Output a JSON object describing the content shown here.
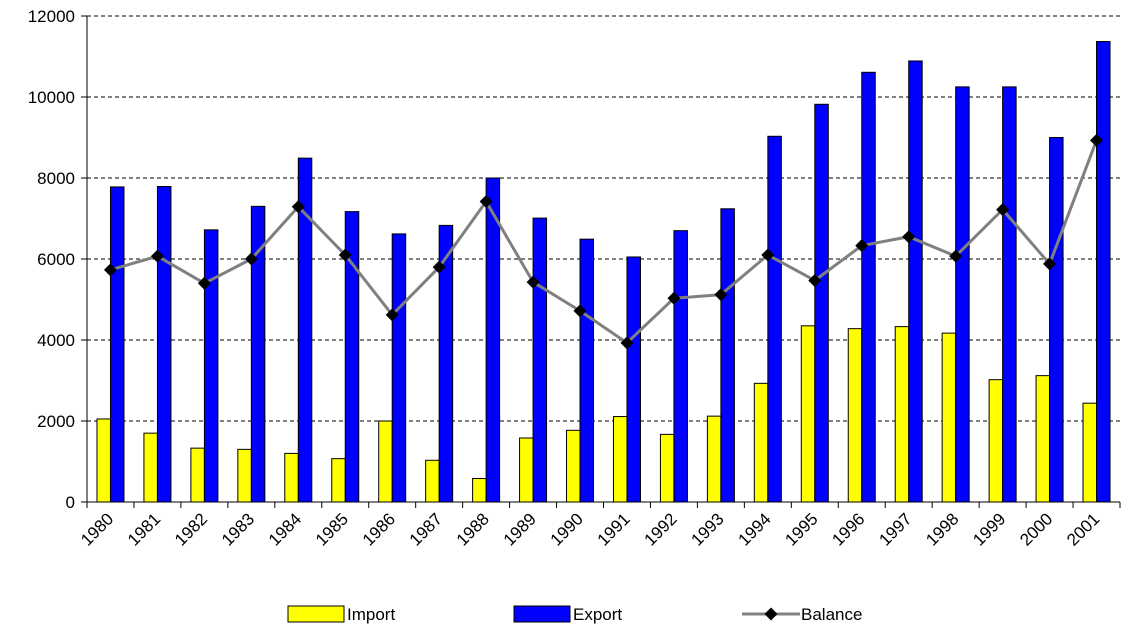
{
  "chart_data": {
    "type": "bar",
    "categories": [
      "1980",
      "1981",
      "1982",
      "1983",
      "1984",
      "1985",
      "1986",
      "1987",
      "1988",
      "1989",
      "1990",
      "1991",
      "1992",
      "1993",
      "1994",
      "1995",
      "1996",
      "1997",
      "1998",
      "1999",
      "2000",
      "2001"
    ],
    "ylim": [
      0,
      12000
    ],
    "yticks": [
      0,
      2000,
      4000,
      6000,
      8000,
      10000,
      12000
    ],
    "ytick_labels": [
      "0",
      "2000",
      "4000",
      "6000",
      "8000",
      "10000",
      "12000"
    ],
    "grid": true,
    "legend_position": "bottom",
    "series": [
      {
        "name": "Import",
        "kind": "bar",
        "color": "#ffff00",
        "values": [
          2050,
          1700,
          1330,
          1300,
          1200,
          1070,
          2000,
          1030,
          580,
          1580,
          1770,
          2110,
          1670,
          2120,
          2930,
          4350,
          4280,
          4330,
          4170,
          3020,
          3120,
          2440
        ]
      },
      {
        "name": "Export",
        "kind": "bar",
        "color": "#0000ff",
        "values": [
          7780,
          7790,
          6720,
          7300,
          8490,
          7170,
          6620,
          6830,
          8000,
          7010,
          6490,
          6050,
          6700,
          7240,
          9030,
          9820,
          10610,
          10890,
          10250,
          10250,
          9000,
          11370
        ]
      },
      {
        "name": "Balance",
        "kind": "line",
        "color": "#808080",
        "marker": "diamond",
        "values": [
          5730,
          6070,
          5400,
          6000,
          7290,
          6100,
          4620,
          5800,
          7420,
          5430,
          4720,
          3930,
          5030,
          5120,
          6100,
          5470,
          6330,
          6550,
          6070,
          7220,
          5880,
          8930
        ]
      }
    ]
  }
}
